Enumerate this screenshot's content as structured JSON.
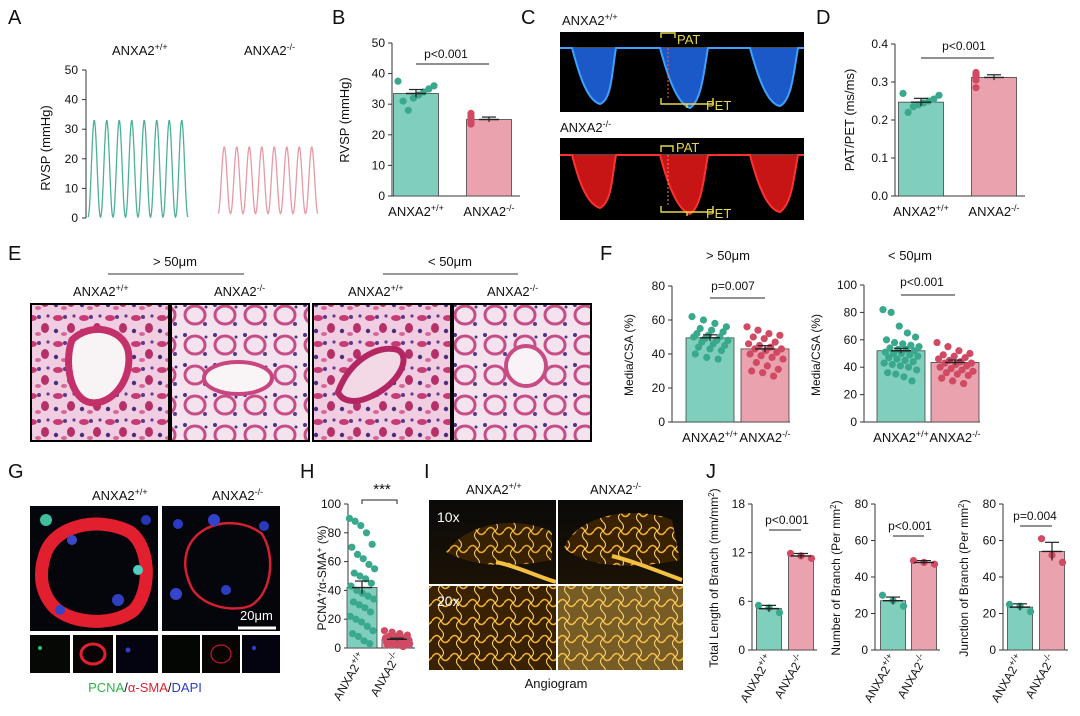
{
  "panels": {
    "A": {
      "letter": "A",
      "wt": "ANXA2",
      "wt_sup": "+/+",
      "ko": "ANXA2",
      "ko_sup": "-/-",
      "ylabel": "RVSP (mmHg)",
      "yticks": [
        "0",
        "10",
        "20",
        "30",
        "40",
        "50"
      ],
      "wt_peak_mmHg": 33,
      "ko_peak_mmHg": 24,
      "wt_color": "#4fb09a",
      "ko_color": "#e79aa4"
    },
    "B": {
      "letter": "B",
      "ylabel": "RVSP (mmHg)",
      "p": "p<0.001",
      "cat_wt": "ANXA2",
      "cat_wt_sup": "+/+",
      "cat_ko": "ANXA2",
      "cat_ko_sup": "-/-"
    },
    "C": {
      "letter": "C",
      "wt": "ANXA2",
      "wt_sup": "+/+",
      "ko": "ANXA2",
      "ko_sup": "-/-",
      "pat": "PAT",
      "pet": "PET"
    },
    "D": {
      "letter": "D",
      "ylabel": "PAT/PET (ms/ms)",
      "p": "p<0.001",
      "cat_wt": "ANXA2",
      "cat_wt_sup": "+/+",
      "cat_ko": "ANXA2",
      "cat_ko_sup": "-/-"
    },
    "E": {
      "letter": "E",
      "group1": "> 50μm",
      "group2": "< 50μm",
      "wt": "ANXA2",
      "wt_sup": "+/+",
      "ko": "ANXA2",
      "ko_sup": "-/-"
    },
    "F": {
      "letter": "F",
      "title1": "> 50μm",
      "title2": "< 50μm",
      "ylabel": "Media/CSA (%)",
      "p1": "p=0.007",
      "p2": "p<0.001",
      "cat_wt": "ANXA2",
      "cat_wt_sup": "+/+",
      "cat_ko": "ANXA2",
      "cat_ko_sup": "-/-"
    },
    "G": {
      "letter": "G",
      "wt": "ANXA2",
      "wt_sup": "+/+",
      "ko": "ANXA2",
      "ko_sup": "-/-",
      "scale": "20μm",
      "legend_pcna": "PCNA",
      "legend_sep1": "/",
      "legend_sma": "α-SMA",
      "legend_sep2": "/",
      "legend_dapi": "DAPI"
    },
    "H": {
      "letter": "H",
      "ylabel_a": "PCNA",
      "ylabel_b": "/α-SMA",
      "ylabel_c": " (%)",
      "sig": "***",
      "cat_wt": "ANXA2",
      "cat_wt_sup": "+/+",
      "cat_ko": "ANXA2",
      "cat_ko_sup": "-/-"
    },
    "I": {
      "letter": "I",
      "wt": "ANXA2",
      "wt_sup": "+/+",
      "ko": "ANXA2",
      "ko_sup": "-/-",
      "mag1": "10x",
      "mag2": "20x",
      "caption": "Angiogram"
    },
    "J": {
      "letter": "J",
      "ylabel1": "Total Length of Branch (mm/mm",
      "ylabel2": "Number of Branch (Per mm",
      "ylabel3": "Junction of Branch (Per mm",
      "ylabel_sup": "2",
      "p1": "p<0.001",
      "p2": "p<0.001",
      "p3": "p=0.004",
      "cat_wt": "ANXA2",
      "cat_wt_sup": "+/+",
      "cat_ko": "ANXA2",
      "cat_ko_sup": "-/-"
    }
  },
  "colors": {
    "wt": "#7fcfbc",
    "wt_dot": "#3aa88c",
    "ko": "#e9a2ae",
    "ko_dot": "#d04a63"
  },
  "chart_data": [
    {
      "id": "B",
      "type": "bar",
      "categories": [
        "ANXA2+/+",
        "ANXA2-/-"
      ],
      "ylabel": "RVSP (mmHg)",
      "ylim": [
        0,
        50
      ],
      "yticks": [
        0,
        10,
        20,
        30,
        40,
        50
      ],
      "values": [
        33.5,
        25.0
      ],
      "errors": [
        1.3,
        0.8
      ],
      "points": [
        [
          37.5,
          36,
          35,
          34,
          33,
          32,
          28,
          31
        ],
        [
          27,
          26,
          25.5,
          25,
          24.5,
          24,
          23.5
        ]
      ],
      "annotation": "p<0.001"
    },
    {
      "id": "D",
      "type": "bar",
      "categories": [
        "ANXA2+/+",
        "ANXA2-/-"
      ],
      "ylabel": "PAT/PET (ms/ms)",
      "ylim": [
        0,
        0.4
      ],
      "yticks": [
        0.0,
        0.1,
        0.2,
        0.3,
        0.4
      ],
      "values": [
        0.247,
        0.312
      ],
      "errors": [
        0.01,
        0.007
      ],
      "points": [
        [
          0.27,
          0.265,
          0.255,
          0.25,
          0.245,
          0.24,
          0.235,
          0.22
        ],
        [
          0.325,
          0.32,
          0.318,
          0.315,
          0.31,
          0.305,
          0.285
        ]
      ],
      "annotation": "p<0.001"
    },
    {
      "id": "F1",
      "type": "bar",
      "title": "> 50μm",
      "categories": [
        "ANXA2+/+",
        "ANXA2-/-"
      ],
      "ylabel": "Media/CSA (%)",
      "ylim": [
        0,
        80
      ],
      "yticks": [
        0,
        20,
        40,
        60,
        80
      ],
      "values": [
        49.5,
        43.0
      ],
      "errors": [
        1.8,
        1.9
      ],
      "points": [
        [
          62,
          60,
          58,
          56,
          55,
          54,
          53,
          52,
          51,
          50,
          50,
          49,
          48,
          48,
          47,
          46,
          45,
          44,
          43,
          42,
          40,
          38,
          37
        ],
        [
          56,
          54,
          52,
          51,
          50,
          49,
          47,
          46,
          45,
          44,
          43,
          43,
          42,
          41,
          40,
          39,
          38,
          37,
          35,
          33,
          31,
          30,
          29,
          27
        ]
      ],
      "annotation": "p=0.007"
    },
    {
      "id": "F2",
      "type": "bar",
      "title": "< 50μm",
      "categories": [
        "ANXA2+/+",
        "ANXA2-/-"
      ],
      "ylabel": "Media/CSA (%)",
      "ylim": [
        0,
        100
      ],
      "yticks": [
        0,
        20,
        40,
        60,
        80,
        100
      ],
      "values": [
        52.0,
        43.5
      ],
      "errors": [
        1.8,
        1.7
      ],
      "points": [
        [
          82,
          80,
          70,
          65,
          62,
          60,
          58,
          57,
          56,
          55,
          54,
          53,
          53,
          52,
          51,
          50,
          50,
          49,
          48,
          47,
          46,
          45,
          44,
          43,
          42,
          41,
          40,
          38,
          36,
          35,
          33,
          30
        ],
        [
          58,
          55,
          52,
          50,
          49,
          48,
          47,
          46,
          45,
          44,
          43,
          43,
          42,
          41,
          40,
          39,
          38,
          37,
          36,
          35,
          34,
          32,
          30,
          28
        ]
      ],
      "annotation": "p<0.001"
    },
    {
      "id": "H",
      "type": "bar",
      "categories": [
        "ANXA2+/+",
        "ANXA2-/-"
      ],
      "ylabel": "PCNA+/α-SMA+ (%)",
      "ylim": [
        0,
        100
      ],
      "yticks": [
        0,
        20,
        40,
        60,
        80,
        100
      ],
      "values": [
        42.0,
        6.0
      ],
      "errors": [
        4.5,
        0.8
      ],
      "points": [
        [
          90,
          88,
          85,
          80,
          72,
          70,
          65,
          62,
          58,
          55,
          52,
          50,
          48,
          45,
          43,
          40,
          38,
          36,
          34,
          32,
          30,
          28,
          25,
          22,
          20,
          18,
          15,
          12,
          10,
          8,
          5,
          3
        ],
        [
          12,
          11,
          10,
          9,
          8,
          8,
          7,
          7,
          6,
          6,
          6,
          5,
          5,
          5,
          4,
          4,
          4,
          3,
          3,
          3,
          2,
          2,
          2,
          1
        ]
      ],
      "annotation": "***"
    },
    {
      "id": "J1",
      "type": "bar",
      "categories": [
        "ANXA2+/+",
        "ANXA2-/-"
      ],
      "ylabel": "Total Length of Branch (mm/mm2)",
      "ylim": [
        0,
        18
      ],
      "yticks": [
        0,
        6,
        12,
        18
      ],
      "values": [
        5.1,
        11.6
      ],
      "errors": [
        0.4,
        0.3
      ],
      "points": [
        [
          5.5,
          5.2,
          4.6
        ],
        [
          11.9,
          11.6,
          11.3
        ]
      ],
      "annotation": "p<0.001"
    },
    {
      "id": "J2",
      "type": "bar",
      "categories": [
        "ANXA2+/+",
        "ANXA2-/-"
      ],
      "ylabel": "Number of Branch (Per mm2)",
      "ylim": [
        0,
        80
      ],
      "yticks": [
        0,
        20,
        40,
        60,
        80
      ],
      "values": [
        27.0,
        48.0
      ],
      "errors": [
        2.0,
        1.0
      ],
      "points": [
        [
          30,
          27,
          24
        ],
        [
          49,
          48,
          47
        ]
      ],
      "annotation": "p<0.001"
    },
    {
      "id": "J3",
      "type": "bar",
      "categories": [
        "ANXA2+/+",
        "ANXA2-/-"
      ],
      "ylabel": "Junction of Branch (Per mm2)",
      "ylim": [
        0,
        80
      ],
      "yticks": [
        0,
        20,
        40,
        60,
        80
      ],
      "values": [
        23.5,
        54.0
      ],
      "errors": [
        1.8,
        5.0
      ],
      "points": [
        [
          25,
          24,
          21
        ],
        [
          61,
          52,
          48
        ]
      ],
      "annotation": "p=0.004"
    }
  ]
}
